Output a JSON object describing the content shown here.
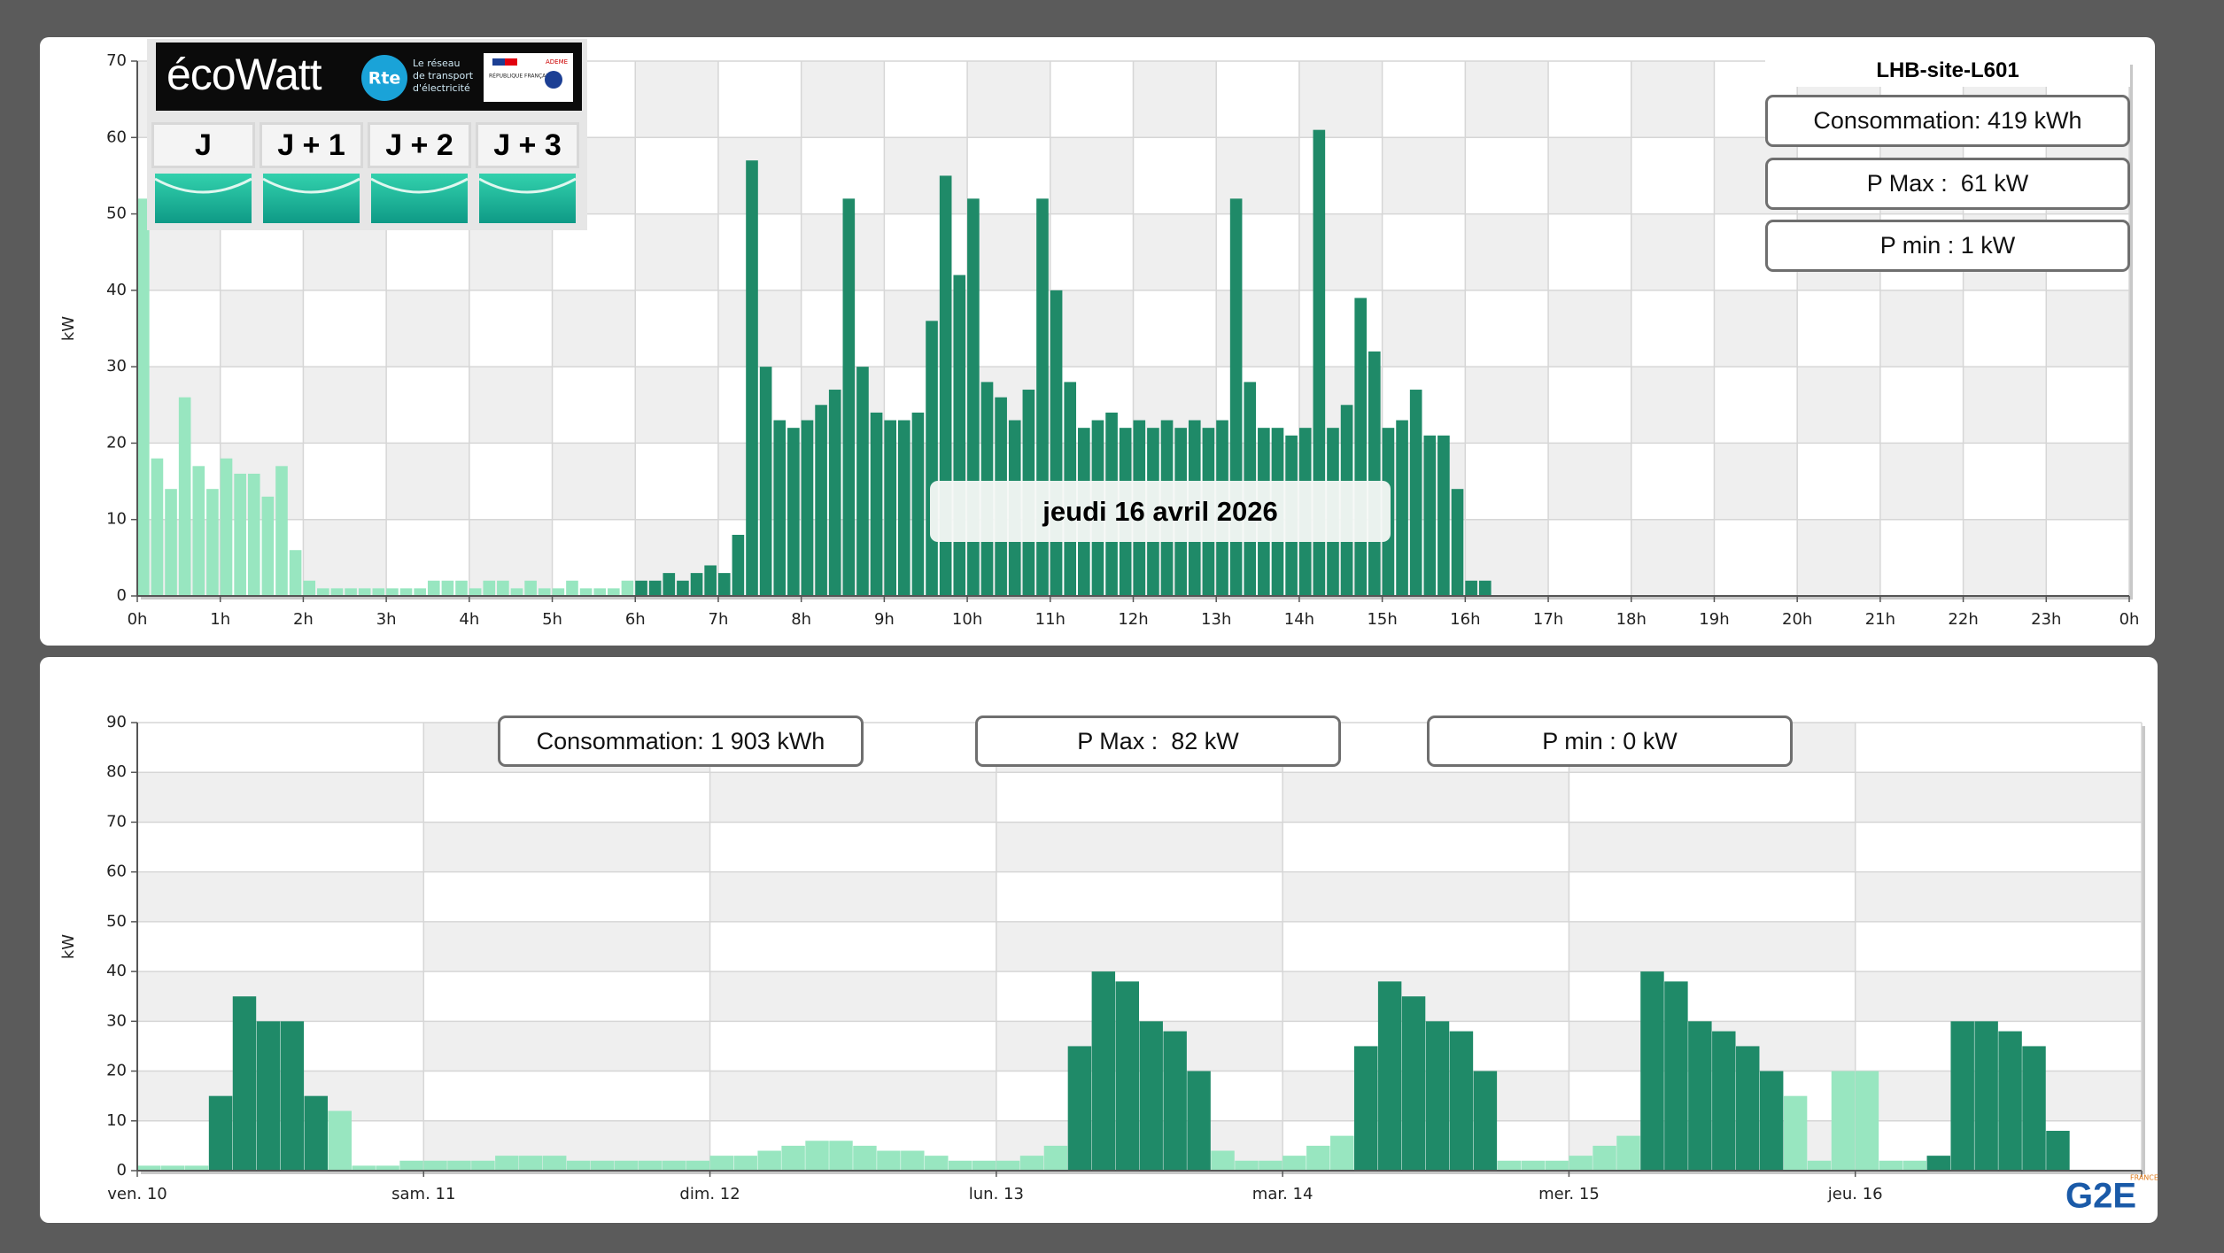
{
  "chart_data": [
    {
      "type": "bar",
      "site": "LHB-site-L601",
      "stats": [
        "Consommation: 419 kWh",
        "P Max :  61 kW",
        "P min : 1 kW"
      ],
      "date_label": "jeudi 16 avril 2026",
      "y_label": "kW",
      "xlim": [
        0,
        1440
      ],
      "xticks": [
        {
          "value": 0,
          "label": "0h"
        },
        {
          "value": 60,
          "label": "1h"
        },
        {
          "value": 120,
          "label": "2h"
        },
        {
          "value": 180,
          "label": "3h"
        },
        {
          "value": 240,
          "label": "4h"
        },
        {
          "value": 300,
          "label": "5h"
        },
        {
          "value": 360,
          "label": "6h"
        },
        {
          "value": 420,
          "label": "7h"
        },
        {
          "value": 480,
          "label": "8h"
        },
        {
          "value": 540,
          "label": "9h"
        },
        {
          "value": 600,
          "label": "10h"
        },
        {
          "value": 660,
          "label": "11h"
        },
        {
          "value": 720,
          "label": "12h"
        },
        {
          "value": 780,
          "label": "13h"
        },
        {
          "value": 840,
          "label": "14h"
        },
        {
          "value": 900,
          "label": "15h"
        },
        {
          "value": 960,
          "label": "16h"
        },
        {
          "value": 1020,
          "label": "17h"
        },
        {
          "value": 1080,
          "label": "18h"
        },
        {
          "value": 1140,
          "label": "19h"
        },
        {
          "value": 1200,
          "label": "20h"
        },
        {
          "value": 1260,
          "label": "21h"
        },
        {
          "value": 1320,
          "label": "22h"
        },
        {
          "value": 1380,
          "label": "23h"
        },
        {
          "value": 1440,
          "label": "0h"
        }
      ],
      "ylim": [
        0,
        70
      ],
      "yticks": [
        0,
        10,
        20,
        30,
        40,
        50,
        60,
        70
      ],
      "grid": true,
      "series": [
        {
          "color": "#98e6c0",
          "x": [
            0,
            10,
            20,
            30,
            40,
            50,
            60,
            70,
            80,
            90,
            100,
            110,
            120,
            130,
            140,
            150,
            160,
            170,
            180,
            190,
            200,
            210,
            220,
            230,
            240,
            250,
            260,
            270,
            280,
            290,
            300,
            310,
            320,
            330,
            340,
            350
          ],
          "values": [
            52,
            18,
            14,
            26,
            17,
            14,
            18,
            16,
            16,
            13,
            17,
            6,
            2,
            1,
            1,
            1,
            1,
            1,
            1,
            1,
            1,
            2,
            2,
            2,
            1,
            2,
            2,
            1,
            2,
            1,
            1,
            2,
            1,
            1,
            1,
            2
          ]
        },
        {
          "color": "#1f8a68",
          "x": [
            360,
            370,
            380,
            390,
            400,
            410,
            420,
            430,
            440,
            450,
            460,
            470,
            480,
            490,
            500,
            510,
            520,
            530,
            540,
            550,
            560,
            570,
            580,
            590,
            600,
            610,
            620,
            630,
            640,
            650,
            660,
            670,
            680,
            690,
            700,
            710,
            720,
            730,
            740,
            750,
            760,
            770,
            780,
            790,
            800,
            810,
            820,
            830,
            840,
            850,
            860,
            870,
            880,
            890,
            900,
            910,
            920,
            930,
            940,
            950,
            960,
            970
          ],
          "values": [
            2,
            2,
            3,
            2,
            3,
            4,
            3,
            8,
            57,
            30,
            23,
            22,
            23,
            25,
            27,
            52,
            30,
            24,
            23,
            23,
            24,
            36,
            55,
            42,
            52,
            28,
            26,
            23,
            27,
            52,
            40,
            28,
            22,
            23,
            24,
            22,
            23,
            22,
            23,
            22,
            23,
            22,
            23,
            52,
            28,
            22,
            22,
            21,
            22,
            61,
            22,
            25,
            39,
            32,
            22,
            23,
            27,
            21,
            21,
            14,
            2,
            2
          ]
        }
      ]
    },
    {
      "type": "bar",
      "stats": [
        "Consommation: 1 903 kWh",
        "P Max :  82 kW",
        "P min : 0 kW"
      ],
      "y_label": "kW",
      "xlim": [
        0,
        168
      ],
      "xticks": [
        {
          "value": 0,
          "label": "ven. 10"
        },
        {
          "value": 24,
          "label": "sam. 11"
        },
        {
          "value": 48,
          "label": "dim. 12"
        },
        {
          "value": 72,
          "label": "lun. 13"
        },
        {
          "value": 96,
          "label": "mar. 14"
        },
        {
          "value": 120,
          "label": "mer. 15"
        },
        {
          "value": 144,
          "label": "jeu. 16"
        },
        168
      ],
      "ylim": [
        0,
        90
      ],
      "yticks": [
        0,
        10,
        20,
        30,
        40,
        50,
        60,
        70,
        80,
        90
      ],
      "grid": true,
      "x": [
        0,
        2,
        4,
        6,
        8,
        10,
        12,
        14,
        16,
        18,
        20,
        22,
        24,
        26,
        28,
        30,
        32,
        34,
        36,
        38,
        40,
        42,
        44,
        46,
        48,
        50,
        52,
        54,
        56,
        58,
        60,
        62,
        64,
        66,
        68,
        70,
        72,
        74,
        76,
        78,
        80,
        82,
        84,
        86,
        88,
        90,
        92,
        94,
        96,
        98,
        100,
        102,
        104,
        106,
        108,
        110,
        112,
        114,
        116,
        118,
        120,
        122,
        124,
        126,
        128,
        130,
        132,
        134,
        136,
        138,
        140,
        142,
        144,
        146,
        148,
        150,
        152,
        154,
        156,
        158,
        160
      ],
      "series": [
        {
          "color": "#98e6c0",
          "values": [
            1,
            1,
            1,
            null,
            null,
            null,
            null,
            null,
            12,
            1,
            1,
            2,
            2,
            2,
            2,
            3,
            3,
            3,
            2,
            2,
            2,
            2,
            2,
            2,
            3,
            3,
            4,
            5,
            6,
            6,
            5,
            4,
            4,
            3,
            2,
            2,
            2,
            3,
            5,
            null,
            null,
            null,
            null,
            null,
            null,
            4,
            2,
            2,
            3,
            5,
            7,
            null,
            null,
            null,
            null,
            null,
            null,
            2,
            2,
            2,
            3,
            5,
            7,
            null,
            null,
            null,
            null,
            null,
            null,
            15,
            2,
            20,
            20,
            2,
            2,
            null,
            null,
            null,
            null,
            null,
            null
          ]
        },
        {
          "color": "#1f8a68",
          "values": [
            null,
            null,
            null,
            15,
            35,
            30,
            30,
            15,
            null,
            null,
            null,
            null,
            null,
            null,
            null,
            null,
            null,
            null,
            null,
            null,
            null,
            null,
            null,
            null,
            null,
            null,
            null,
            null,
            null,
            null,
            null,
            null,
            null,
            null,
            null,
            null,
            null,
            null,
            null,
            25,
            40,
            38,
            30,
            28,
            20,
            null,
            null,
            null,
            null,
            null,
            null,
            25,
            38,
            35,
            30,
            28,
            20,
            null,
            null,
            null,
            null,
            null,
            null,
            40,
            38,
            30,
            28,
            25,
            20,
            null,
            null,
            null,
            null,
            null,
            null,
            3,
            30,
            30,
            28,
            25,
            8
          ]
        }
      ]
    }
  ],
  "ecowatt": {
    "logo": "écoWatt",
    "rte": "Rte",
    "tagline": [
      "Le réseau",
      "de transport",
      "d'électricité"
    ],
    "republique": "RÉPUBLIQUE FRANÇAISE",
    "ademe": "ADEME",
    "days": [
      "J",
      "J + 1",
      "J + 2",
      "J + 3"
    ]
  },
  "brand": {
    "text": "G2E",
    "country": "FRANCE"
  }
}
